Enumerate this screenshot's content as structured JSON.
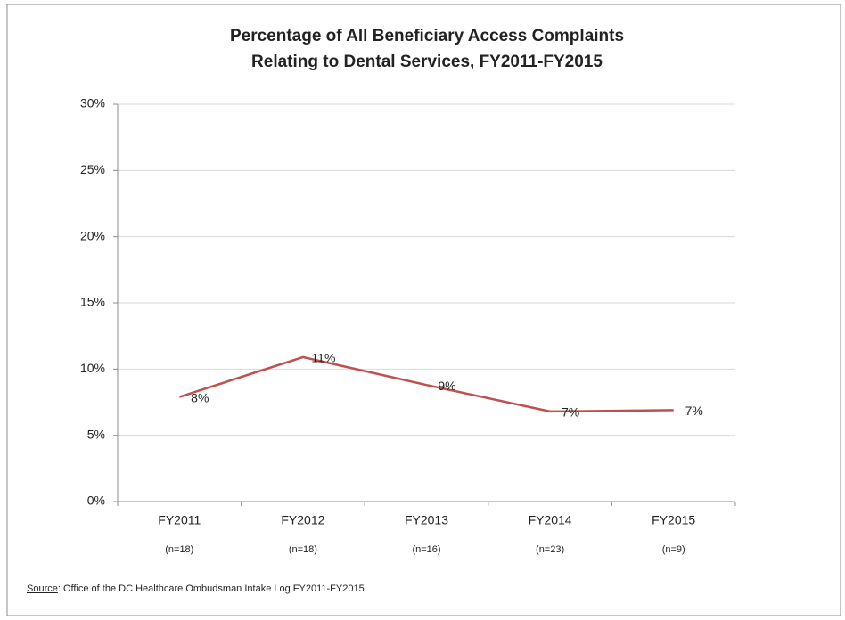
{
  "chart_data": {
    "type": "line",
    "title_lines": [
      "Percentage of All Beneficiary Access Complaints",
      "Relating to Dental Services, FY2011-FY2015"
    ],
    "categories": [
      "FY2011",
      "FY2012",
      "FY2013",
      "FY2014",
      "FY2015"
    ],
    "category_sublabels": [
      "(n=18)",
      "(n=18)",
      "(n=16)",
      "(n=23)",
      "(n=9)"
    ],
    "series": [
      {
        "name": "Dental Services",
        "color": "#c0504d",
        "values": [
          7.9,
          10.9,
          8.8,
          6.8,
          6.9
        ],
        "value_labels": [
          "8%",
          "11%",
          "9%",
          "7%",
          "7%"
        ]
      }
    ],
    "ylim": [
      0,
      30
    ],
    "yticks": [
      {
        "value": 0,
        "label": "0%"
      },
      {
        "value": 5,
        "label": "5%"
      },
      {
        "value": 10,
        "label": "10%"
      },
      {
        "value": 15,
        "label": "15%"
      },
      {
        "value": 20,
        "label": "20%"
      },
      {
        "value": 25,
        "label": "25%"
      },
      {
        "value": 30,
        "label": "30%"
      }
    ],
    "grid": true,
    "source_label": "Source",
    "source_text": ": Office of the DC Healthcare Ombudsman Intake Log FY2011-FY2015"
  }
}
